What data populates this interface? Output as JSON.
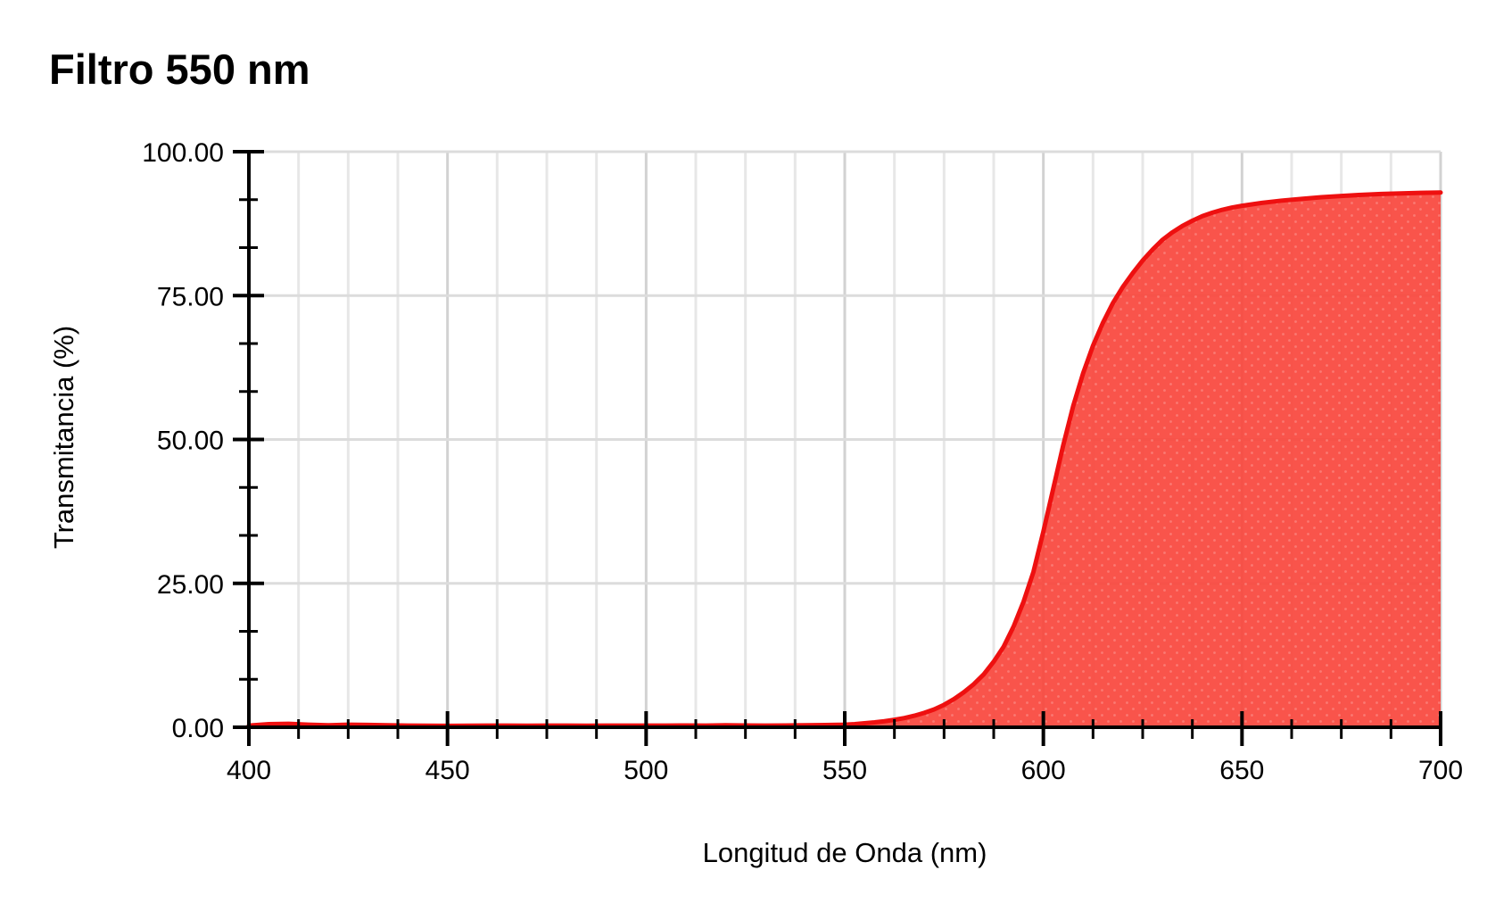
{
  "title": "Filtro 550 nm",
  "chart_data": {
    "type": "area",
    "title": "Filtro 550 nm",
    "xlabel": "Longitud de Onda (nm)",
    "ylabel": "Transmitancia (%)",
    "xlim": [
      400,
      700
    ],
    "ylim": [
      0,
      100
    ],
    "x_major_ticks": [
      400,
      450,
      500,
      550,
      600,
      650,
      700
    ],
    "x_tick_labels": [
      "400",
      "450",
      "500",
      "550",
      "600",
      "650",
      "700"
    ],
    "x_minor_step": 12.5,
    "y_major_ticks": [
      0,
      25,
      50,
      75,
      100
    ],
    "y_tick_labels": [
      "0.00",
      "25.00",
      "50.00",
      "75.00",
      "100.00"
    ],
    "y_minors_between_majors": 2,
    "grid": {
      "vertical": "all ticks",
      "horizontal": "major ticks only",
      "legend": "none"
    },
    "colors": {
      "curve_line": "#ee1010",
      "curve_fill": "#f9473d",
      "grid_minor": "#e7e7e7",
      "grid_major": "#d2d2d2",
      "axis": "#000000"
    },
    "series": [
      {
        "name": "Transmitancia",
        "points": [
          [
            400,
            0.3
          ],
          [
            405,
            0.55
          ],
          [
            410,
            0.6
          ],
          [
            415,
            0.45
          ],
          [
            420,
            0.35
          ],
          [
            425,
            0.45
          ],
          [
            430,
            0.4
          ],
          [
            435,
            0.35
          ],
          [
            440,
            0.3
          ],
          [
            445,
            0.28
          ],
          [
            450,
            0.25
          ],
          [
            455,
            0.27
          ],
          [
            460,
            0.3
          ],
          [
            465,
            0.3
          ],
          [
            470,
            0.28
          ],
          [
            475,
            0.3
          ],
          [
            480,
            0.3
          ],
          [
            485,
            0.28
          ],
          [
            490,
            0.3
          ],
          [
            495,
            0.3
          ],
          [
            500,
            0.3
          ],
          [
            505,
            0.3
          ],
          [
            510,
            0.32
          ],
          [
            515,
            0.3
          ],
          [
            520,
            0.35
          ],
          [
            525,
            0.32
          ],
          [
            530,
            0.3
          ],
          [
            535,
            0.32
          ],
          [
            540,
            0.35
          ],
          [
            545,
            0.38
          ],
          [
            550,
            0.45
          ],
          [
            552.5,
            0.55
          ],
          [
            555,
            0.7
          ],
          [
            557.5,
            0.85
          ],
          [
            560,
            1.05
          ],
          [
            562.5,
            1.3
          ],
          [
            565,
            1.6
          ],
          [
            567.5,
            2
          ],
          [
            570,
            2.5
          ],
          [
            572.5,
            3.1
          ],
          [
            575,
            3.9
          ],
          [
            577.5,
            4.9
          ],
          [
            580,
            6.1
          ],
          [
            582.5,
            7.5
          ],
          [
            585,
            9.2
          ],
          [
            587.5,
            11.4
          ],
          [
            590,
            14
          ],
          [
            592.5,
            17.5
          ],
          [
            595,
            21.8
          ],
          [
            597.5,
            27
          ],
          [
            600,
            34
          ],
          [
            602.5,
            41.5
          ],
          [
            605,
            49
          ],
          [
            607.5,
            55.8
          ],
          [
            610,
            61.5
          ],
          [
            612.5,
            66.3
          ],
          [
            615,
            70.3
          ],
          [
            617.5,
            73.7
          ],
          [
            620,
            76.5
          ],
          [
            622.5,
            78.9
          ],
          [
            625,
            81.1
          ],
          [
            627.5,
            83
          ],
          [
            630,
            84.7
          ],
          [
            632.5,
            86
          ],
          [
            635,
            87.1
          ],
          [
            637.5,
            88
          ],
          [
            640,
            88.8
          ],
          [
            642.5,
            89.4
          ],
          [
            645,
            89.9
          ],
          [
            647.5,
            90.3
          ],
          [
            650,
            90.6
          ],
          [
            655,
            91.1
          ],
          [
            660,
            91.5
          ],
          [
            665,
            91.8
          ],
          [
            670,
            92.1
          ],
          [
            675,
            92.3
          ],
          [
            680,
            92.5
          ],
          [
            685,
            92.65
          ],
          [
            690,
            92.75
          ],
          [
            695,
            92.85
          ],
          [
            700,
            92.9
          ]
        ]
      }
    ]
  }
}
